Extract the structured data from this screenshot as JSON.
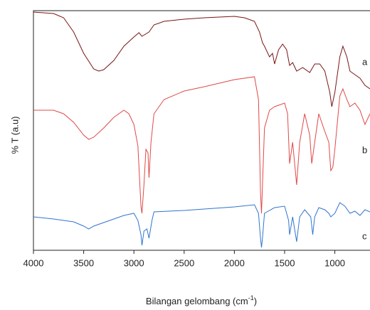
{
  "chart_data": {
    "type": "line",
    "x_label": [
      "Bilangan gelombang (cm",
      "-1",
      ")"
    ],
    "y_label": "% T (a.u)",
    "xlim": [
      4000,
      650
    ],
    "ylim": [
      0,
      337
    ],
    "xticks": [
      4000,
      3500,
      3000,
      2500,
      2000,
      1500,
      1000
    ],
    "series": [
      {
        "name": "a",
        "color": "#7a1414",
        "x": [
          4000,
          3800,
          3700,
          3600,
          3500,
          3400,
          3350,
          3300,
          3200,
          3100,
          3000,
          2950,
          2920,
          2850,
          2800,
          2700,
          2500,
          2300,
          2000,
          1900,
          1800,
          1750,
          1720,
          1700,
          1650,
          1620,
          1600,
          1560,
          1520,
          1480,
          1450,
          1420,
          1380,
          1320,
          1250,
          1200,
          1150,
          1100,
          1050,
          1030,
          1000,
          950,
          920,
          880,
          850,
          800,
          750,
          700,
          650
        ],
        "values": [
          335,
          333,
          327,
          307,
          277,
          255,
          252,
          254,
          267,
          287,
          300,
          306,
          301,
          307,
          317,
          322,
          325,
          327,
          329,
          327,
          322,
          307,
          292,
          287,
          272,
          277,
          262,
          282,
          290,
          282,
          260,
          264,
          252,
          257,
          250,
          262,
          262,
          252,
          222,
          202,
          222,
          272,
          287,
          272,
          252,
          247,
          242,
          232,
          227
        ]
      },
      {
        "name": "b",
        "color": "#e04848",
        "x": [
          4000,
          3800,
          3700,
          3600,
          3500,
          3450,
          3400,
          3300,
          3200,
          3100,
          3050,
          3000,
          2960,
          2930,
          2920,
          2900,
          2880,
          2860,
          2850,
          2830,
          2800,
          2700,
          2500,
          2300,
          2000,
          1800,
          1760,
          1740,
          1730,
          1720,
          1700,
          1650,
          1600,
          1500,
          1470,
          1450,
          1420,
          1380,
          1350,
          1300,
          1250,
          1230,
          1200,
          1160,
          1100,
          1060,
          1040,
          1020,
          1000,
          950,
          920,
          880,
          850,
          800,
          750,
          700,
          650
        ],
        "values": [
          197,
          197,
          192,
          180,
          162,
          156,
          159,
          172,
          187,
          197,
          192,
          177,
          147,
          62,
          52,
          92,
          142,
          137,
          102,
          152,
          192,
          212,
          224,
          230,
          240,
          244,
          212,
          82,
          52,
          92,
          172,
          197,
          202,
          207,
          192,
          122,
          152,
          92,
          152,
          192,
          162,
          122,
          152,
          192,
          167,
          152,
          112,
          117,
          142,
          217,
          227,
          212,
          202,
          207,
          197,
          177,
          192
        ]
      },
      {
        "name": "c",
        "color": "#2f74d0",
        "x": [
          4000,
          3800,
          3600,
          3500,
          3450,
          3400,
          3200,
          3100,
          3000,
          2960,
          2930,
          2920,
          2900,
          2870,
          2850,
          2820,
          2800,
          2500,
          2200,
          2000,
          1800,
          1760,
          1740,
          1730,
          1720,
          1700,
          1600,
          1500,
          1460,
          1450,
          1420,
          1380,
          1350,
          1300,
          1240,
          1220,
          1200,
          1160,
          1100,
          1060,
          1040,
          1000,
          950,
          900,
          850,
          800,
          750,
          700,
          650
        ],
        "values": [
          47,
          44,
          40,
          34,
          30,
          34,
          44,
          49,
          52,
          42,
          22,
          7,
          27,
          30,
          17,
          42,
          54,
          56,
          59,
          61,
          64,
          52,
          17,
          4,
          17,
          52,
          60,
          62,
          42,
          22,
          47,
          12,
          47,
          57,
          47,
          22,
          47,
          60,
          57,
          52,
          47,
          52,
          67,
          62,
          52,
          55,
          49,
          57,
          54
        ]
      }
    ]
  }
}
